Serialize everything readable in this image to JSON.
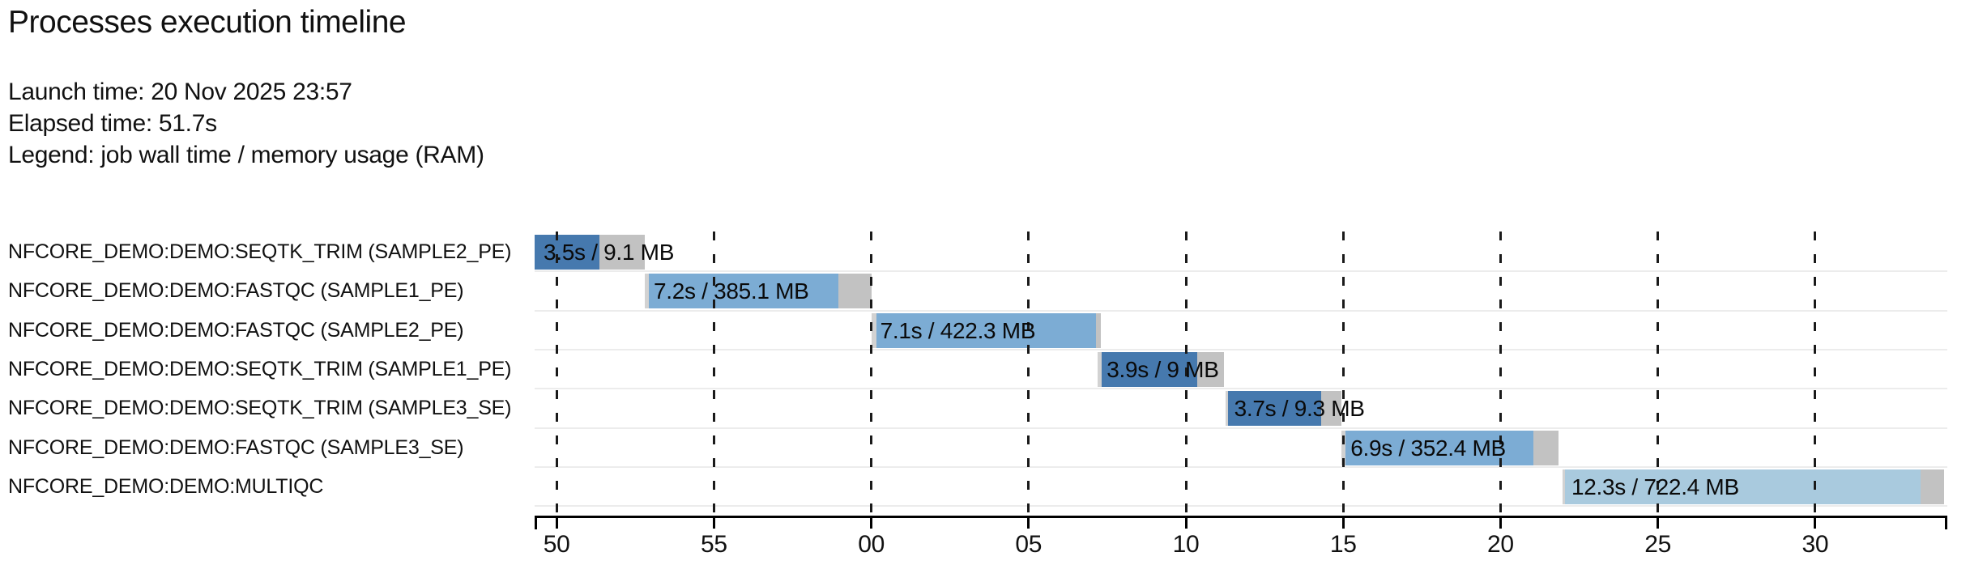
{
  "header": {
    "title": "Processes execution timeline",
    "launch_line": "Launch time: 20 Nov 2025 23:57",
    "elapsed_line": "Elapsed time: 51.7s",
    "legend_line": "Legend: job wall time / memory usage (RAM)"
  },
  "chart_data": {
    "type": "timeline",
    "title": "Processes execution timeline",
    "launch_time": "20 Nov 2025 23:57",
    "elapsed_time": "51.7s",
    "legend": "job wall time / memory usage (RAM)",
    "time_axis": {
      "unit": "clock seconds after 23:57:00",
      "min": 49.3,
      "max": 94.2,
      "grid": "dashed-vertical",
      "ticks": [
        {
          "t": 50,
          "label": "50"
        },
        {
          "t": 55,
          "label": "55"
        },
        {
          "t": 60,
          "label": "00"
        },
        {
          "t": 65,
          "label": "05"
        },
        {
          "t": 70,
          "label": "10"
        },
        {
          "t": 75,
          "label": "15"
        },
        {
          "t": 80,
          "label": "20"
        },
        {
          "t": 85,
          "label": "25"
        },
        {
          "t": 90,
          "label": "30"
        }
      ]
    },
    "process_colors": {
      "SEQTK_TRIM": "#4679ae",
      "FASTQC": "#7cacd4",
      "MULTIQC": "#a9cade"
    },
    "queue_color": "#d2d2d2",
    "tail_color": "#c2c2c2",
    "tasks": [
      {
        "name": "NFCORE_DEMO:DEMO:SEQTK_TRIM (SAMPLE2_PE)",
        "process": "SEQTK_TRIM",
        "bar_label": "3.5s / 9.1 MB",
        "wall_time": "3.5s",
        "memory": "9.1 MB",
        "submit": 49.3,
        "start": 49.3,
        "run_end": 51.35,
        "end": 52.8
      },
      {
        "name": "NFCORE_DEMO:DEMO:FASTQC (SAMPLE1_PE)",
        "process": "FASTQC",
        "bar_label": "7.2s / 385.1 MB",
        "wall_time": "7.2s",
        "memory": "385.1 MB",
        "submit": 52.8,
        "start": 52.93,
        "run_end": 58.95,
        "end": 60.0
      },
      {
        "name": "NFCORE_DEMO:DEMO:FASTQC (SAMPLE2_PE)",
        "process": "FASTQC",
        "bar_label": "7.1s / 422.3 MB",
        "wall_time": "7.1s",
        "memory": "422.3 MB",
        "submit": 60.0,
        "start": 60.16,
        "run_end": 67.15,
        "end": 67.3
      },
      {
        "name": "NFCORE_DEMO:DEMO:SEQTK_TRIM (SAMPLE1_PE)",
        "process": "SEQTK_TRIM",
        "bar_label": "3.9s / 9 MB",
        "wall_time": "3.9s",
        "memory": "9 MB",
        "submit": 67.2,
        "start": 67.32,
        "run_end": 70.35,
        "end": 71.2
      },
      {
        "name": "NFCORE_DEMO:DEMO:SEQTK_TRIM (SAMPLE3_SE)",
        "process": "SEQTK_TRIM",
        "bar_label": "3.7s / 9.3 MB",
        "wall_time": "3.7s",
        "memory": "9.3 MB",
        "submit": 71.25,
        "start": 71.35,
        "run_end": 74.3,
        "end": 74.95
      },
      {
        "name": "NFCORE_DEMO:DEMO:FASTQC (SAMPLE3_SE)",
        "process": "FASTQC",
        "bar_label": "6.9s / 352.4 MB",
        "wall_time": "6.9s",
        "memory": "352.4 MB",
        "submit": 74.95,
        "start": 75.08,
        "run_end": 81.05,
        "end": 81.85
      },
      {
        "name": "NFCORE_DEMO:DEMO:MULTIQC",
        "process": "MULTIQC",
        "bar_label": "12.3s / 722.4 MB",
        "wall_time": "12.3s",
        "memory": "722.4 MB",
        "submit": 81.97,
        "start": 82.05,
        "run_end": 93.35,
        "end": 94.1
      }
    ]
  }
}
